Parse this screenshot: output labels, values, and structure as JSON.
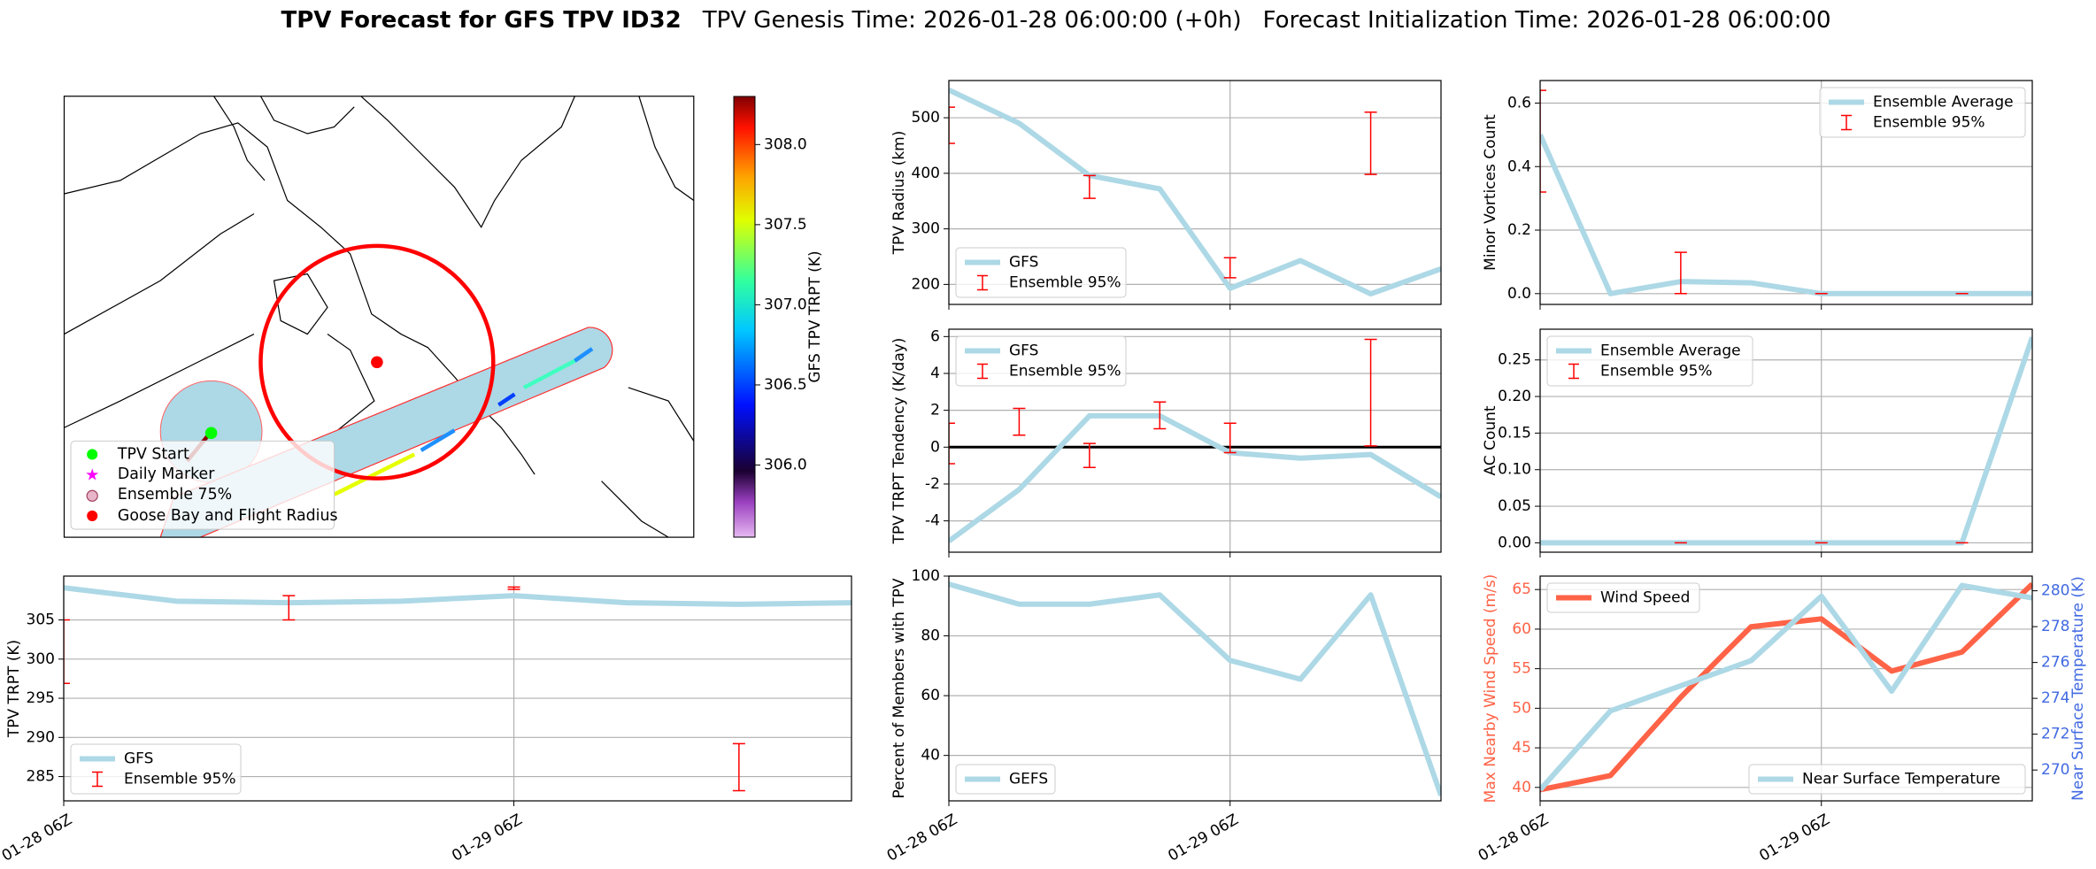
{
  "header": {
    "title": "TPV Forecast for GFS TPV ID32",
    "genesis": "TPV Genesis Time: 2026-01-28 06:00:00 (+0h)",
    "init": "Forecast Initialization Time: 2026-01-28 06:00:00"
  },
  "map": {
    "legend": [
      "TPV Start",
      "Daily Marker",
      "Ensemble 75%",
      "Goose Bay and Flight Radius"
    ],
    "colorbar": {
      "label": "GFS TPV TRPT (K)",
      "lim": [
        305.55,
        308.3
      ],
      "ticks": [
        {
          "value": 306,
          "label": "306.0"
        },
        306.5,
        {
          "value": 307,
          "label": "307.0"
        },
        307.5,
        {
          "value": 308,
          "label": "308.0"
        }
      ]
    }
  },
  "chart_data": [
    {
      "type": "line",
      "ylabel": "TPV Radius (km)",
      "categories": [
        "01-28 06Z",
        null,
        null,
        null,
        "01-29 06Z",
        null,
        null,
        null
      ],
      "series": [
        {
          "name": "GFS",
          "color": "#add8e6",
          "values": [
            550,
            490,
            396,
            372,
            193,
            243,
            183,
            228
          ]
        }
      ],
      "errorbars": {
        "name": "Ensemble 95%",
        "color": "#ff0000",
        "low": [
          454,
          null,
          355,
          null,
          212,
          null,
          398,
          null
        ],
        "high": [
          519,
          null,
          396,
          null,
          248,
          null,
          510,
          null
        ]
      },
      "ylim": [
        164,
        567
      ],
      "yticks": [
        200,
        300,
        400,
        500
      ],
      "grid": true,
      "legend": "lower left"
    },
    {
      "type": "line",
      "ylabel": "Minor Vortices Count",
      "categories": [
        "01-28 06Z",
        null,
        null,
        null,
        "01-29 06Z",
        null,
        null,
        null
      ],
      "series": [
        {
          "name": "Ensemble Average",
          "color": "#add8e6",
          "values": [
            0.5,
            0,
            0.038,
            0.034,
            0,
            0,
            0,
            0
          ]
        }
      ],
      "errorbars": {
        "name": "Ensemble 95%",
        "color": "#ff0000",
        "low": [
          0.32,
          null,
          0,
          null,
          0,
          null,
          0,
          null
        ],
        "high": [
          0.64,
          null,
          0.13,
          null,
          0,
          null,
          0,
          null
        ]
      },
      "ylim": [
        -0.034,
        0.671
      ],
      "yticks": [
        {
          "value": 0,
          "label": "0.0"
        },
        0.2,
        0.4,
        0.6
      ],
      "grid": true,
      "legend": "upper right"
    },
    {
      "type": "line",
      "ylabel": "TPV TRPT Tendency (K/day)",
      "categories": [
        "01-28 06Z",
        null,
        null,
        null,
        "01-29 06Z",
        null,
        null,
        null
      ],
      "series": [
        {
          "name": "GFS",
          "color": "#add8e6",
          "values": [
            -5.1,
            -2.3,
            1.7,
            1.7,
            -0.3,
            -0.6,
            -0.4,
            -2.7
          ]
        }
      ],
      "errorbars": {
        "name": "Ensemble 95%",
        "color": "#ff0000",
        "low": [
          -0.9,
          0.65,
          -1.1,
          1.0,
          -0.3,
          null,
          0.07,
          null
        ],
        "high": [
          1.3,
          2.1,
          0.2,
          2.45,
          1.3,
          null,
          5.85,
          null
        ]
      },
      "hline": 0,
      "ylim": [
        -5.7,
        6.4
      ],
      "yticks": [
        -4,
        -2,
        0,
        2,
        4,
        6
      ],
      "grid": true,
      "legend": "upper left"
    },
    {
      "type": "line",
      "ylabel": "AC Count",
      "categories": [
        "01-28 06Z",
        null,
        null,
        null,
        "01-29 06Z",
        null,
        null,
        null
      ],
      "series": [
        {
          "name": "Ensemble Average",
          "color": "#add8e6",
          "values": [
            0,
            0,
            0,
            0,
            0,
            0,
            0,
            0.281
          ]
        }
      ],
      "errorbars": {
        "name": "Ensemble 95%",
        "color": "#ff0000",
        "low": [
          null,
          null,
          0,
          null,
          0,
          null,
          0,
          null
        ],
        "high": [
          null,
          null,
          0,
          null,
          0,
          null,
          0,
          null
        ]
      },
      "ylim": [
        -0.0128,
        0.292
      ],
      "yticks": [
        {
          "value": 0,
          "label": "0.00"
        },
        0.05,
        {
          "value": 0.1,
          "label": "0.10"
        },
        0.15,
        {
          "value": 0.2,
          "label": "0.20"
        },
        0.25
      ],
      "grid": true,
      "legend": "upper left"
    },
    {
      "type": "line",
      "ylabel": "TPV TRPT (K)",
      "categories": [
        "01-28 06Z",
        null,
        null,
        null,
        "01-29 06Z",
        null,
        null,
        null
      ],
      "series": [
        {
          "name": "GFS",
          "color": "#add8e6",
          "values": [
            309.1,
            307.4,
            307.2,
            307.4,
            308.1,
            307.2,
            307.0,
            307.2
          ]
        }
      ],
      "errorbars": {
        "name": "Ensemble 95%",
        "color": "#ff0000",
        "low": [
          296.9,
          null,
          305.0,
          null,
          308.9,
          null,
          283.2,
          null
        ],
        "high": [
          305.0,
          null,
          308.1,
          null,
          309.2,
          null,
          289.2,
          null
        ]
      },
      "ylim": [
        281.9,
        310.6
      ],
      "yticks": [
        285,
        290,
        295,
        300,
        305
      ],
      "grid": true,
      "legend": "lower left"
    },
    {
      "type": "line",
      "ylabel": "Percent of Members with TPV",
      "categories": [
        "01-28 06Z",
        null,
        null,
        null,
        "01-29 06Z",
        null,
        null,
        null
      ],
      "series": [
        {
          "name": "GEFS",
          "color": "#add8e6",
          "values": [
            97.3,
            90.6,
            90.6,
            93.7,
            71.8,
            65.5,
            93.7,
            26.6
          ]
        }
      ],
      "ylim": [
        24.8,
        100
      ],
      "yticks": [
        40,
        60,
        80,
        100
      ],
      "grid": true,
      "legend": "lower left"
    },
    {
      "type": "line",
      "ylabel": "Max Nearby Wind Speed (m/s)",
      "ylabel_color": "#ff6347",
      "y2label": "Near Surface Temperature (K)",
      "y2label_color": "#4169e1",
      "categories": [
        "01-28 06Z",
        null,
        null,
        null,
        "01-29 06Z",
        null,
        null,
        null
      ],
      "series": [
        {
          "name": "Wind Speed",
          "color": "#ff6347",
          "values": [
            39.7,
            41.5,
            51.4,
            60.3,
            61.3,
            54.7,
            57.1,
            65.7
          ],
          "legend": "upper left"
        },
        {
          "name": "Near Surface Temperature",
          "color": "#add8e6",
          "axis": "y2",
          "values": [
            268.9,
            273.3,
            274.7,
            276.1,
            279.7,
            274.4,
            280.3,
            279.6
          ],
          "legend": "lower right"
        }
      ],
      "ylim": [
        38.3,
        66.7
      ],
      "yticks": [
        40,
        45,
        50,
        55,
        60,
        65
      ],
      "y2lim": [
        268.28,
        280.82
      ],
      "y2ticks": [
        270,
        272,
        274,
        276,
        278,
        280
      ],
      "grid": true
    }
  ]
}
